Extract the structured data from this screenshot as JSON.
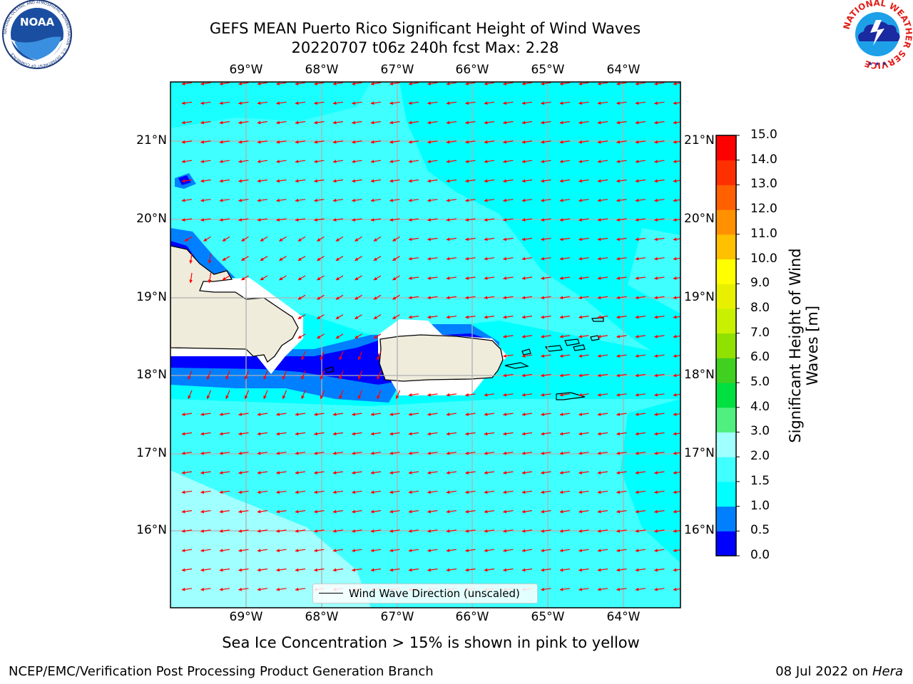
{
  "header": {
    "title_line1": "GEFS MEAN Puerto Rico Significant Height of Wind Waves",
    "title_line2": "20220707 t06z 240h fcst   Max: 2.28"
  },
  "logos": {
    "noaa_text": "NOAA",
    "noaa_ring_text": "NATIONAL OCEANIC AND ATMOSPHERIC ADMINISTRATION · U.S. DEPARTMENT OF COMMERCE",
    "nws_ring_text": "NATIONAL WEATHER SERVICE"
  },
  "map": {
    "lon_labels": [
      "69°W",
      "68°W",
      "67°W",
      "66°W",
      "65°W",
      "64°W"
    ],
    "lat_labels": [
      "21°N",
      "20°N",
      "19°N",
      "18°N",
      "17°N",
      "16°N"
    ],
    "legend_label": "Wind Wave Direction (unscaled)",
    "arrow_color": "#ff0000",
    "land_color": "#efecdc"
  },
  "colorbar": {
    "label": "Significant Height of Wind Waves [m]",
    "ticks": [
      "0.0",
      "0.5",
      "1.0",
      "1.5",
      "2.0",
      "3.0",
      "4.0",
      "5.0",
      "6.0",
      "7.0",
      "8.0",
      "9.0",
      "10.0",
      "11.0",
      "12.0",
      "13.0",
      "14.0",
      "15.0"
    ],
    "colors": [
      "#0000ff",
      "#0080ff",
      "#00ffff",
      "#40ffff",
      "#a0ffff",
      "#50f080",
      "#00e040",
      "#40d020",
      "#90e000",
      "#c8f000",
      "#e8f000",
      "#ffff00",
      "#ffc000",
      "#ff9000",
      "#ff6000",
      "#ff3000",
      "#ff0000"
    ]
  },
  "footer": {
    "note": "Sea Ice Concentration > 15% is shown in pink to yellow",
    "left": "NCEP/EMC/Verification Post Processing Product Generation Branch",
    "right_date": "08 Jul 2022 on ",
    "right_host": "Hera"
  }
}
